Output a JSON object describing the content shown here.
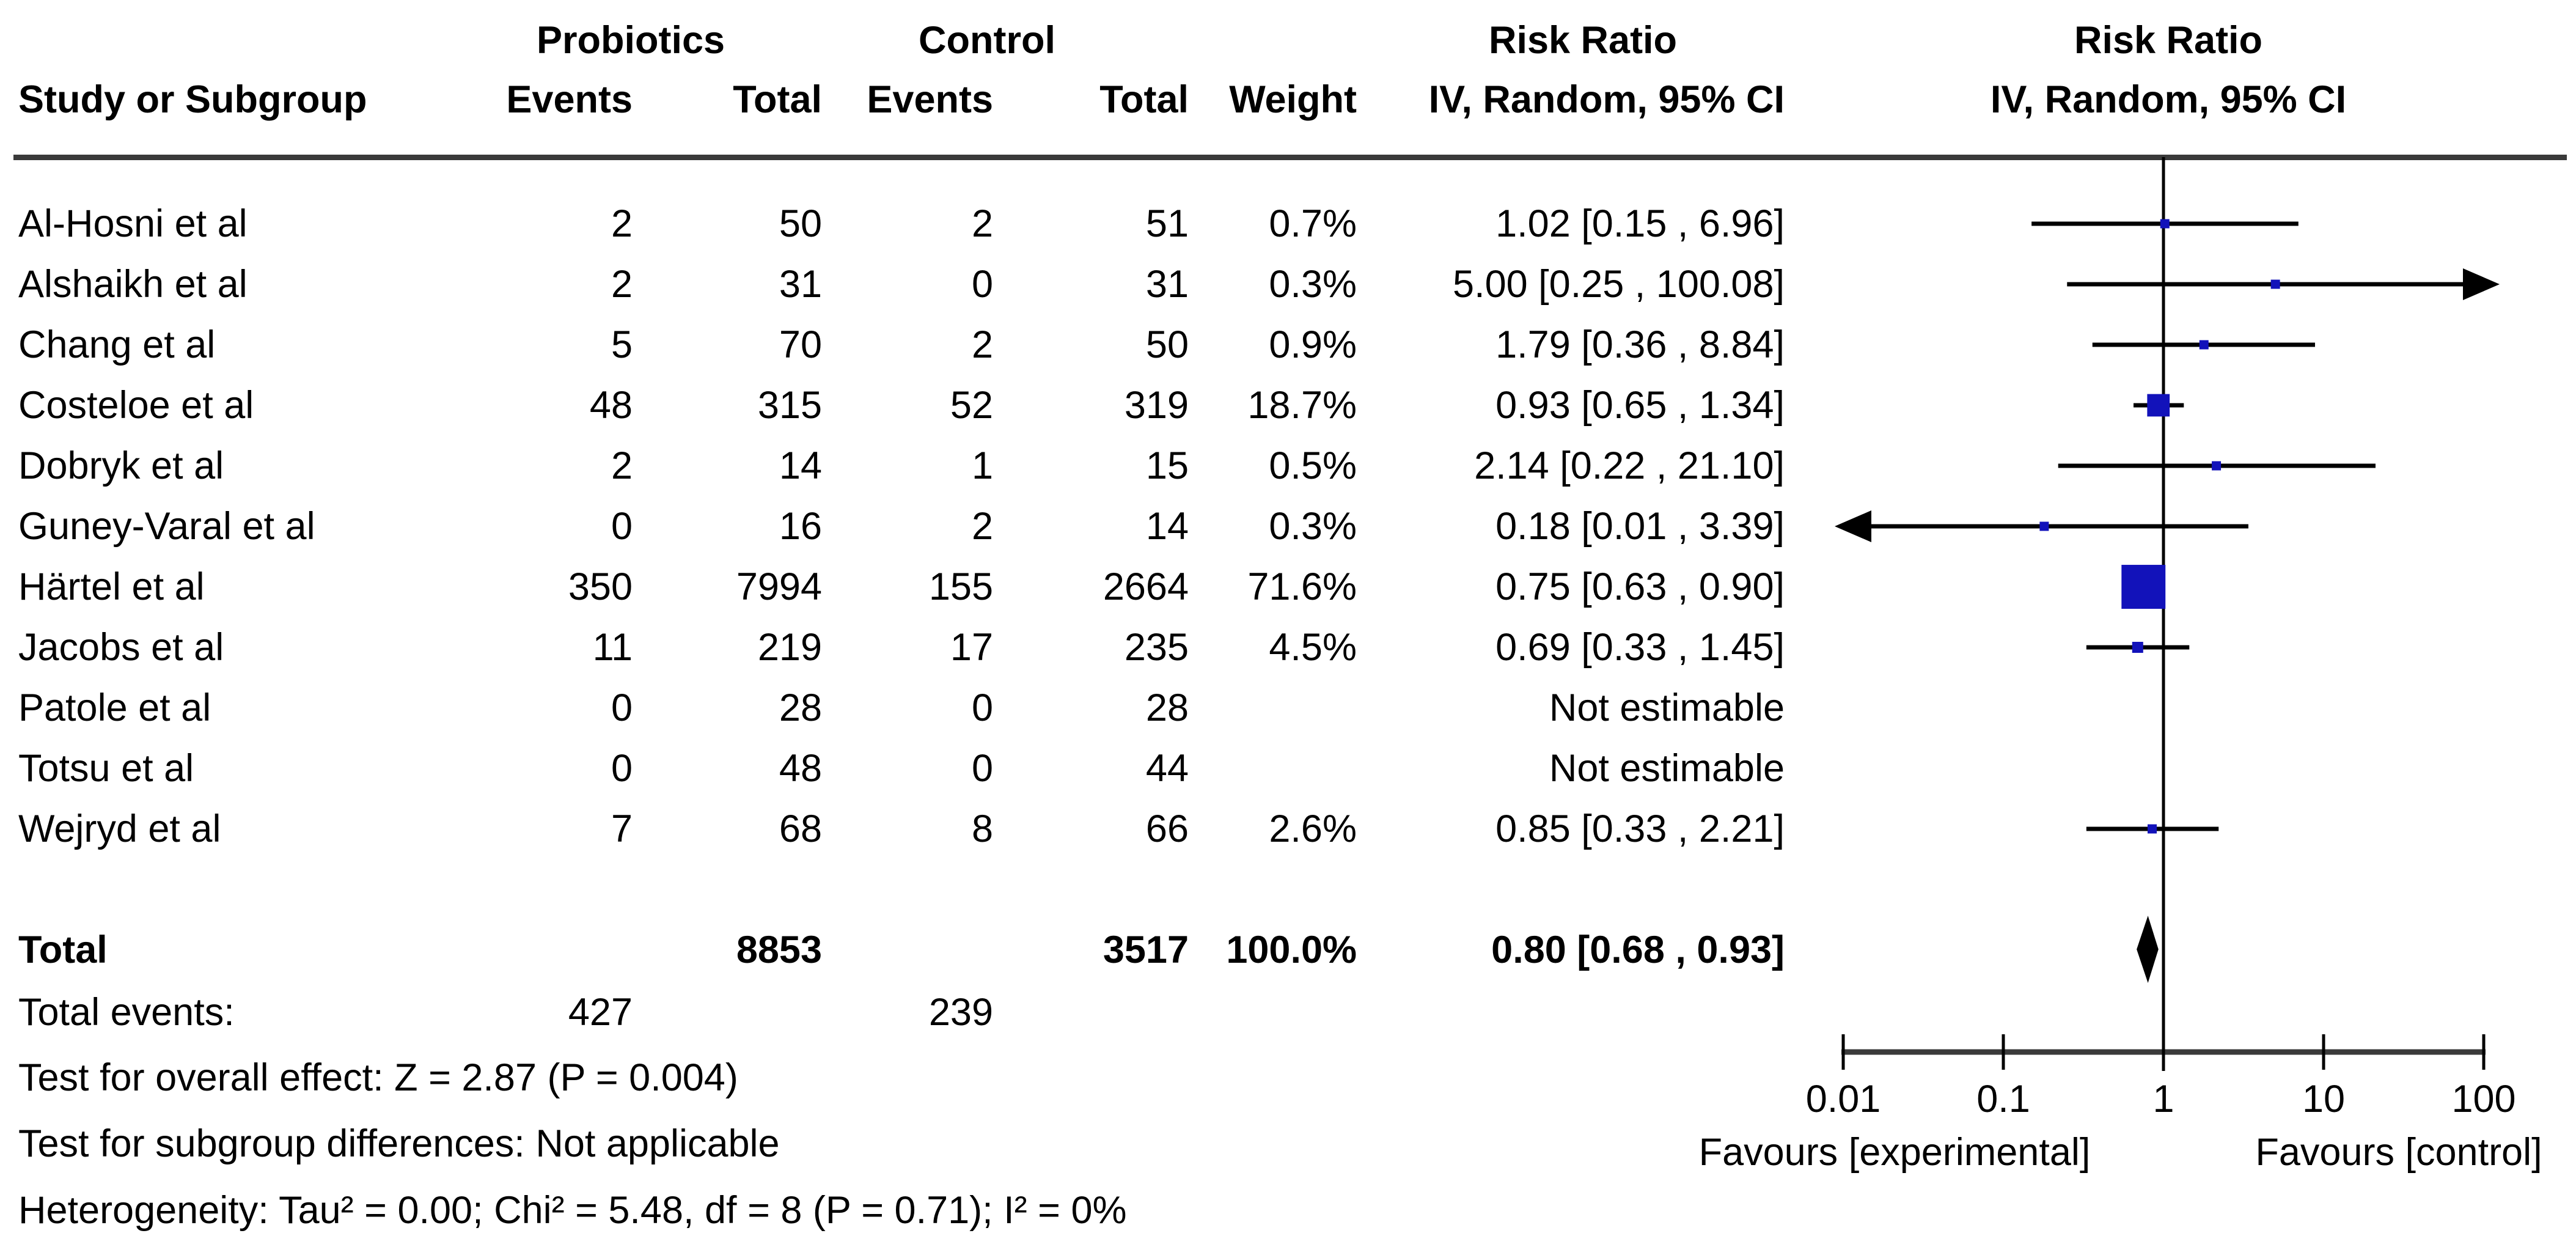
{
  "header": {
    "group_left": "Probiotics",
    "group_right": "Control",
    "study": "Study or Subgroup",
    "events": "Events",
    "total": "Total",
    "weight": "Weight",
    "risk_ratio": "Risk Ratio",
    "risk_ratio_plot": "Risk Ratio",
    "method": "IV, Random, 95% CI",
    "method_plot": "IV, Random, 95% CI"
  },
  "chart_data": {
    "type": "scatter",
    "subtype": "forest",
    "effect_measure": "Risk Ratio",
    "model": "IV, Random, 95% CI",
    "x_scale": "log",
    "x_range": [
      0.01,
      100
    ],
    "x_ticks": [
      "0.01",
      "0.1",
      "1",
      "10",
      "100"
    ],
    "null_line": 1,
    "studies": [
      {
        "name": "Al-Hosni et al",
        "events": "2",
        "total": "50",
        "c_events": "2",
        "c_total": "51",
        "weight": "0.7%",
        "weight_value": 0.7,
        "rr_text": "1.02 [0.15 , 6.96]",
        "rr": 1.02,
        "lo": 0.15,
        "hi": 6.96,
        "arrow_left": false,
        "arrow_right": false,
        "estimable": true
      },
      {
        "name": "Alshaikh et al",
        "events": "2",
        "total": "31",
        "c_events": "0",
        "c_total": "31",
        "weight": "0.3%",
        "weight_value": 0.3,
        "rr_text": "5.00 [0.25 , 100.08]",
        "rr": 5.0,
        "lo": 0.25,
        "hi": 100.08,
        "arrow_left": false,
        "arrow_right": true,
        "estimable": true
      },
      {
        "name": "Chang et al",
        "events": "5",
        "total": "70",
        "c_events": "2",
        "c_total": "50",
        "weight": "0.9%",
        "weight_value": 0.9,
        "rr_text": "1.79 [0.36 , 8.84]",
        "rr": 1.79,
        "lo": 0.36,
        "hi": 8.84,
        "arrow_left": false,
        "arrow_right": false,
        "estimable": true
      },
      {
        "name": "Costeloe et al",
        "events": "48",
        "total": "315",
        "c_events": "52",
        "c_total": "319",
        "weight": "18.7%",
        "weight_value": 18.7,
        "rr_text": "0.93 [0.65 , 1.34]",
        "rr": 0.93,
        "lo": 0.65,
        "hi": 1.34,
        "arrow_left": false,
        "arrow_right": false,
        "estimable": true
      },
      {
        "name": "Dobryk et al",
        "events": "2",
        "total": "14",
        "c_events": "1",
        "c_total": "15",
        "weight": "0.5%",
        "weight_value": 0.5,
        "rr_text": "2.14 [0.22 , 21.10]",
        "rr": 2.14,
        "lo": 0.22,
        "hi": 21.1,
        "arrow_left": false,
        "arrow_right": false,
        "estimable": true
      },
      {
        "name": "Guney-Varal et al",
        "events": "0",
        "total": "16",
        "c_events": "2",
        "c_total": "14",
        "weight": "0.3%",
        "weight_value": 0.3,
        "rr_text": "0.18 [0.01 , 3.39]",
        "rr": 0.18,
        "lo": 0.01,
        "hi": 3.39,
        "arrow_left": true,
        "arrow_right": false,
        "estimable": true
      },
      {
        "name": "Härtel et al",
        "events": "350",
        "total": "7994",
        "c_events": "155",
        "c_total": "2664",
        "weight": "71.6%",
        "weight_value": 71.6,
        "rr_text": "0.75 [0.63 , 0.90]",
        "rr": 0.75,
        "lo": 0.63,
        "hi": 0.9,
        "arrow_left": false,
        "arrow_right": false,
        "estimable": true
      },
      {
        "name": "Jacobs et al",
        "events": "11",
        "total": "219",
        "c_events": "17",
        "c_total": "235",
        "weight": "4.5%",
        "weight_value": 4.5,
        "rr_text": "0.69 [0.33 , 1.45]",
        "rr": 0.69,
        "lo": 0.33,
        "hi": 1.45,
        "arrow_left": false,
        "arrow_right": false,
        "estimable": true
      },
      {
        "name": "Patole et al",
        "events": "0",
        "total": "28",
        "c_events": "0",
        "c_total": "28",
        "weight": "",
        "weight_value": null,
        "rr_text": "Not estimable",
        "rr": null,
        "lo": null,
        "hi": null,
        "arrow_left": false,
        "arrow_right": false,
        "estimable": false
      },
      {
        "name": "Totsu et al",
        "events": "0",
        "total": "48",
        "c_events": "0",
        "c_total": "44",
        "weight": "",
        "weight_value": null,
        "rr_text": "Not estimable",
        "rr": null,
        "lo": null,
        "hi": null,
        "arrow_left": false,
        "arrow_right": false,
        "estimable": false
      },
      {
        "name": "Wejryd et al",
        "events": "7",
        "total": "68",
        "c_events": "8",
        "c_total": "66",
        "weight": "2.6%",
        "weight_value": 2.6,
        "rr_text": "0.85 [0.33 , 2.21]",
        "rr": 0.85,
        "lo": 0.33,
        "hi": 2.21,
        "arrow_left": false,
        "arrow_right": false,
        "estimable": true
      }
    ],
    "overall": {
      "rr": 0.8,
      "lo": 0.68,
      "hi": 0.93
    }
  },
  "total_row": {
    "label": "Total",
    "total": "8853",
    "c_total": "3517",
    "weight": "100.0%",
    "rr_text": "0.80 [0.68 , 0.93]"
  },
  "total_events_row": {
    "label": "Total events:",
    "experimental": "427",
    "control": "239"
  },
  "footnotes": [
    "Test for overall effect: Z = 2.87 (P = 0.004)",
    "Test for subgroup differences: Not applicable",
    "Heterogeneity: Tau² = 0.00; Chi² = 5.48, df = 8 (P = 0.71); I² = 0%"
  ],
  "axis_labels": {
    "favours_left": "Favours [experimental]",
    "favours_right": "Favours [control]"
  },
  "colors": {
    "square": "#1212ba",
    "diamond": "#000000",
    "ci_line": "#000000",
    "rule": "#3a3a3a",
    "text": "#000000",
    "background": "#ffffff"
  }
}
